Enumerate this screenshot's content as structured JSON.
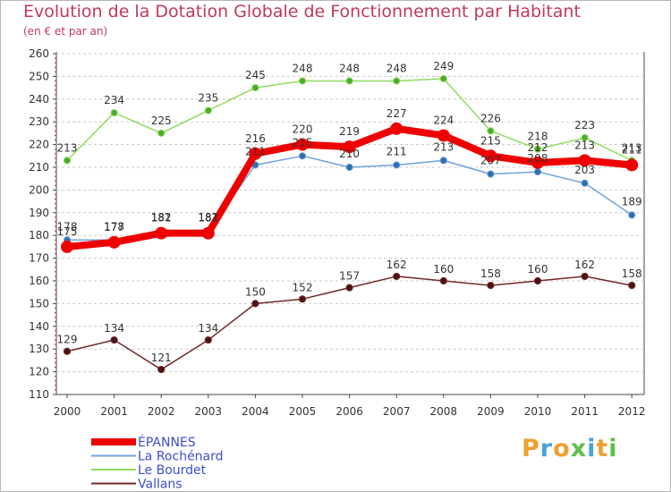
{
  "chart_data": {
    "type": "line",
    "title": "Evolution de la Dotation Globale de Fonctionnement par Habitant",
    "subtitle": "(en € et par an)",
    "xlabel": "",
    "ylabel": "",
    "ylim": [
      110,
      260
    ],
    "ytick_step": 10,
    "grid": "dashed-horizontal",
    "legend_position": "bottom-left",
    "x": [
      "2000",
      "2001",
      "2002",
      "2003",
      "2004",
      "2005",
      "2006",
      "2007",
      "2008",
      "2009",
      "2010",
      "2011",
      "2012"
    ],
    "series": [
      {
        "name": "ÉPANNES",
        "color": "#ee0000",
        "values": [
          175,
          177,
          181,
          181,
          216,
          220,
          219,
          227,
          224,
          215,
          212,
          213,
          211
        ]
      },
      {
        "name": "La Rochénard",
        "color": "#6fa3d9",
        "values": [
          178,
          178,
          182,
          182,
          211,
          215,
          210,
          211,
          213,
          207,
          208,
          203,
          189
        ]
      },
      {
        "name": "Le Bourdet",
        "color": "#8fdc5f",
        "values": [
          213,
          234,
          225,
          235,
          245,
          248,
          248,
          248,
          249,
          226,
          218,
          223,
          213
        ]
      },
      {
        "name": "Vallans",
        "color": "#722a2a",
        "values": [
          129,
          134,
          121,
          134,
          150,
          152,
          157,
          162,
          160,
          158,
          160,
          162,
          158
        ]
      }
    ]
  },
  "logo": {
    "letters": [
      {
        "ch": "P",
        "color": "#f0a030"
      },
      {
        "ch": "r",
        "color": "#4aa0e0"
      },
      {
        "ch": "o",
        "color": "#f0a030"
      },
      {
        "ch": "x",
        "color": "#5cc04a"
      },
      {
        "ch": "i",
        "color": "#4aa0e0"
      },
      {
        "ch": "t",
        "color": "#f0a030"
      },
      {
        "ch": "i",
        "color": "#5cc04a"
      }
    ]
  }
}
